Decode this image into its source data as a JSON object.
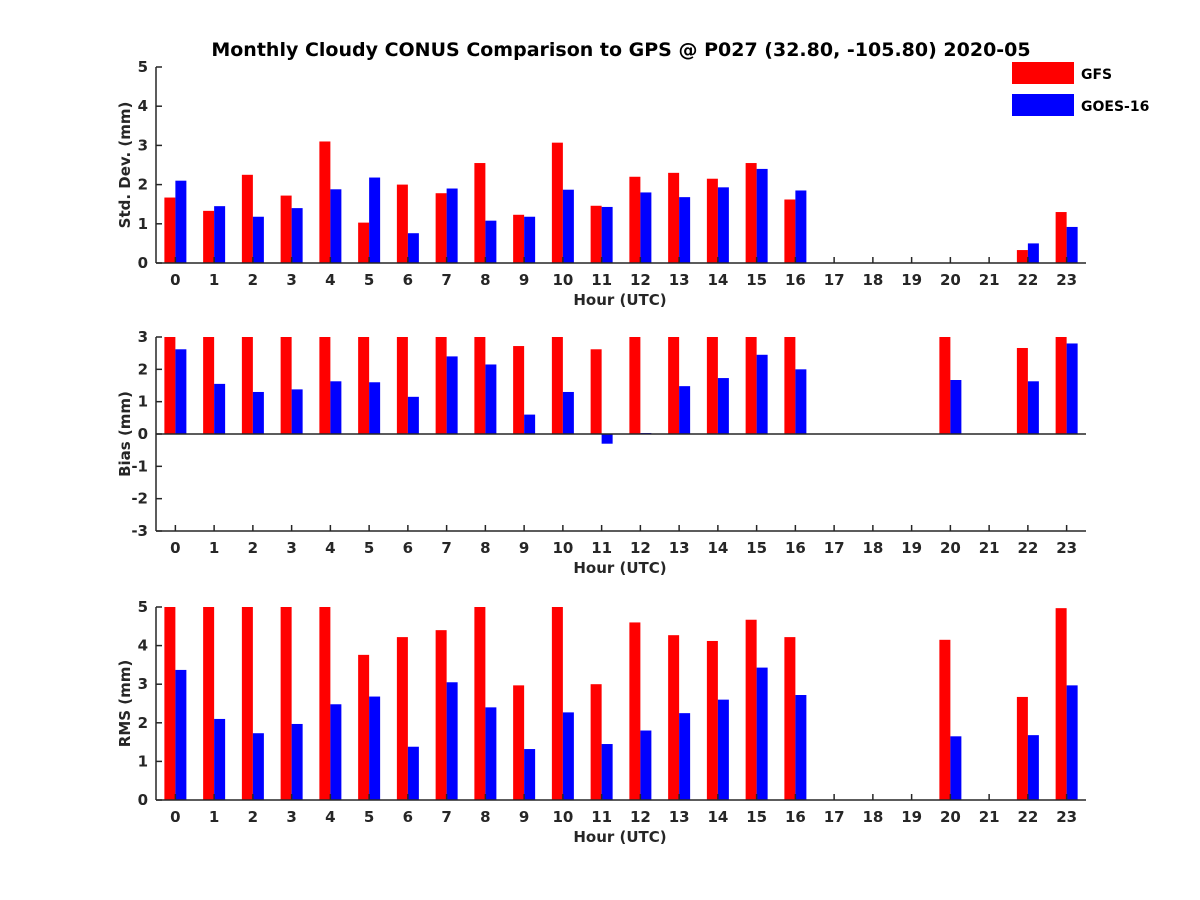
{
  "figure_title": "Monthly Cloudy CONUS Comparison to GPS @ P027 (32.80, -105.80) 2020-05",
  "colors": {
    "GFS": "#ff0000",
    "GOES-16": "#0000ff"
  },
  "legend": [
    {
      "name": "GFS",
      "color": "#ff0000"
    },
    {
      "name": "GOES-16",
      "color": "#0000ff"
    }
  ],
  "chart_data": [
    {
      "type": "bar",
      "title": "Monthly Cloudy CONUS Comparison to GPS @ P027 (32.80, -105.80) 2020-05",
      "xlabel": "Hour (UTC)",
      "ylabel": "Std. Dev. (mm)",
      "ylim": [
        0,
        5
      ],
      "yticks": [
        0,
        1,
        2,
        3,
        4,
        5
      ],
      "categories": [
        0,
        1,
        2,
        3,
        4,
        5,
        6,
        7,
        8,
        9,
        10,
        11,
        12,
        13,
        14,
        15,
        16,
        17,
        18,
        19,
        20,
        21,
        22,
        23
      ],
      "grid": false,
      "legend_position": "top-right",
      "series": [
        {
          "name": "GFS",
          "values": [
            1.67,
            1.33,
            2.25,
            1.72,
            3.1,
            1.03,
            2.0,
            1.78,
            2.55,
            1.23,
            3.07,
            1.46,
            2.2,
            2.3,
            2.15,
            2.55,
            1.62,
            0,
            0,
            0,
            0,
            0,
            0.33,
            1.3
          ]
        },
        {
          "name": "GOES-16",
          "values": [
            2.1,
            1.45,
            1.18,
            1.4,
            1.88,
            2.18,
            0.76,
            1.9,
            1.08,
            1.18,
            1.87,
            1.43,
            1.8,
            1.68,
            1.93,
            2.4,
            1.85,
            0,
            0,
            0,
            0,
            0,
            0.5,
            0.92
          ]
        }
      ]
    },
    {
      "type": "bar",
      "xlabel": "Hour (UTC)",
      "ylabel": "Bias (mm)",
      "ylim": [
        -3,
        3
      ],
      "yticks": [
        -3,
        -2,
        -1,
        0,
        1,
        2,
        3
      ],
      "categories": [
        0,
        1,
        2,
        3,
        4,
        5,
        6,
        7,
        8,
        9,
        10,
        11,
        12,
        13,
        14,
        15,
        16,
        17,
        18,
        19,
        20,
        21,
        22,
        23
      ],
      "grid": false,
      "series": [
        {
          "name": "GFS",
          "values": [
            3,
            3,
            3,
            3,
            3,
            3,
            3,
            3,
            3,
            2.72,
            3,
            2.62,
            3,
            3,
            3,
            3,
            3,
            0,
            0,
            0,
            3,
            0,
            2.66,
            3
          ]
        },
        {
          "name": "GOES-16",
          "values": [
            2.62,
            1.55,
            1.3,
            1.38,
            1.63,
            1.6,
            1.15,
            2.4,
            2.15,
            0.6,
            1.3,
            -0.3,
            0.03,
            1.48,
            1.73,
            2.45,
            2.0,
            0,
            0,
            0,
            1.67,
            0,
            1.63,
            2.8
          ]
        }
      ]
    },
    {
      "type": "bar",
      "xlabel": "Hour (UTC)",
      "ylabel": "RMS (mm)",
      "ylim": [
        0,
        5
      ],
      "yticks": [
        0,
        1,
        2,
        3,
        4,
        5
      ],
      "categories": [
        0,
        1,
        2,
        3,
        4,
        5,
        6,
        7,
        8,
        9,
        10,
        11,
        12,
        13,
        14,
        15,
        16,
        17,
        18,
        19,
        20,
        21,
        22,
        23
      ],
      "grid": false,
      "series": [
        {
          "name": "GFS",
          "values": [
            5,
            5,
            5,
            5,
            5,
            3.76,
            4.22,
            4.4,
            5,
            2.97,
            5,
            3.0,
            4.6,
            4.27,
            4.12,
            4.67,
            4.22,
            0,
            0,
            0,
            4.15,
            0,
            2.67,
            4.97
          ]
        },
        {
          "name": "GOES-16",
          "values": [
            3.37,
            2.1,
            1.73,
            1.97,
            2.48,
            2.68,
            1.38,
            3.05,
            2.4,
            1.32,
            2.27,
            1.45,
            1.8,
            2.25,
            2.6,
            3.43,
            2.72,
            0,
            0,
            0,
            1.65,
            0,
            1.68,
            2.97
          ]
        }
      ]
    }
  ]
}
